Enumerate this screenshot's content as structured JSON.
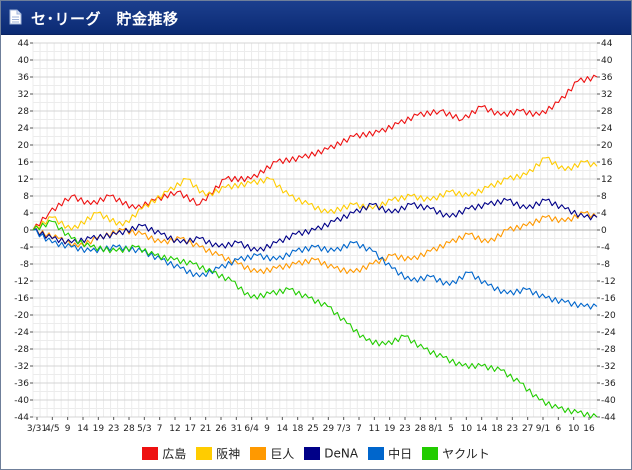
{
  "window": {
    "title": "セ･リーグ　貯金推移",
    "icon": "document-icon"
  },
  "chart_data": {
    "type": "line",
    "title": "セ･リーグ　貯金推移",
    "ylim": [
      -44,
      44
    ],
    "y_ticks": [
      44,
      40,
      36,
      32,
      28,
      24,
      20,
      16,
      12,
      8,
      4,
      0,
      -4,
      -8,
      -12,
      -16,
      -20,
      -24,
      -28,
      -32,
      -36,
      -40,
      -44
    ],
    "x_tick_labels": [
      "3/31",
      "4/5",
      "9",
      "14",
      "19",
      "23",
      "28",
      "5/3",
      "7",
      "12",
      "17",
      "21",
      "26",
      "31",
      "6/4",
      "9",
      "14",
      "18",
      "25",
      "29",
      "7/3",
      "7",
      "11",
      "19",
      "23",
      "28",
      "8/1",
      "5",
      "10",
      "14",
      "18",
      "23",
      "27",
      "9/1",
      "6",
      "10",
      "16"
    ],
    "grid": true,
    "legend_position": "bottom",
    "series": [
      {
        "name": "広島",
        "color": "#ee1111",
        "points": [
          [
            0,
            0
          ],
          [
            5,
            4
          ],
          [
            12,
            8
          ],
          [
            18,
            6
          ],
          [
            24,
            8
          ],
          [
            32,
            5
          ],
          [
            38,
            7
          ],
          [
            45,
            9
          ],
          [
            52,
            6
          ],
          [
            60,
            12
          ],
          [
            68,
            12
          ],
          [
            76,
            16
          ],
          [
            84,
            17
          ],
          [
            92,
            19
          ],
          [
            100,
            22
          ],
          [
            108,
            23
          ],
          [
            114,
            25
          ],
          [
            120,
            27
          ],
          [
            127,
            28
          ],
          [
            134,
            26
          ],
          [
            140,
            29
          ],
          [
            146,
            27
          ],
          [
            152,
            28
          ],
          [
            158,
            27
          ],
          [
            164,
            30
          ],
          [
            170,
            35
          ],
          [
            176,
            36
          ]
        ]
      },
      {
        "name": "阪神",
        "color": "#ffcc00",
        "points": [
          [
            0,
            0
          ],
          [
            6,
            3
          ],
          [
            12,
            0
          ],
          [
            20,
            4
          ],
          [
            28,
            1
          ],
          [
            34,
            5
          ],
          [
            42,
            9
          ],
          [
            48,
            12
          ],
          [
            54,
            8
          ],
          [
            60,
            10
          ],
          [
            68,
            11
          ],
          [
            74,
            12
          ],
          [
            80,
            8
          ],
          [
            86,
            6
          ],
          [
            92,
            4
          ],
          [
            100,
            6
          ],
          [
            106,
            5
          ],
          [
            112,
            7
          ],
          [
            118,
            8
          ],
          [
            124,
            7
          ],
          [
            130,
            9
          ],
          [
            136,
            8
          ],
          [
            142,
            10
          ],
          [
            148,
            12
          ],
          [
            154,
            13
          ],
          [
            160,
            17
          ],
          [
            166,
            14
          ],
          [
            172,
            16
          ],
          [
            176,
            15
          ]
        ]
      },
      {
        "name": "巨人",
        "color": "#ff9900",
        "points": [
          [
            0,
            0
          ],
          [
            8,
            -2
          ],
          [
            14,
            -4
          ],
          [
            20,
            -2
          ],
          [
            28,
            0
          ],
          [
            34,
            -1
          ],
          [
            40,
            -3
          ],
          [
            46,
            -2
          ],
          [
            52,
            -4
          ],
          [
            58,
            -6
          ],
          [
            64,
            -8
          ],
          [
            70,
            -10
          ],
          [
            76,
            -9
          ],
          [
            82,
            -8
          ],
          [
            88,
            -7
          ],
          [
            94,
            -9
          ],
          [
            100,
            -10
          ],
          [
            106,
            -8
          ],
          [
            112,
            -6
          ],
          [
            118,
            -7
          ],
          [
            124,
            -5
          ],
          [
            130,
            -3
          ],
          [
            136,
            -1
          ],
          [
            142,
            -3
          ],
          [
            148,
            0
          ],
          [
            154,
            1
          ],
          [
            160,
            3
          ],
          [
            166,
            2
          ],
          [
            172,
            4
          ],
          [
            176,
            3
          ]
        ]
      },
      {
        "name": "DeNA",
        "color": "#000088",
        "points": [
          [
            0,
            0
          ],
          [
            6,
            -2
          ],
          [
            12,
            -3
          ],
          [
            18,
            -2
          ],
          [
            26,
            -1
          ],
          [
            34,
            1
          ],
          [
            40,
            -1
          ],
          [
            46,
            -3
          ],
          [
            52,
            -2
          ],
          [
            58,
            -4
          ],
          [
            64,
            -3
          ],
          [
            70,
            -5
          ],
          [
            76,
            -3
          ],
          [
            82,
            -1
          ],
          [
            88,
            0
          ],
          [
            94,
            2
          ],
          [
            100,
            4
          ],
          [
            106,
            6
          ],
          [
            112,
            4
          ],
          [
            118,
            6
          ],
          [
            124,
            5
          ],
          [
            130,
            3
          ],
          [
            136,
            5
          ],
          [
            142,
            6
          ],
          [
            148,
            7
          ],
          [
            154,
            5
          ],
          [
            160,
            7
          ],
          [
            166,
            5
          ],
          [
            172,
            3
          ],
          [
            176,
            3
          ]
        ]
      },
      {
        "name": "中日",
        "color": "#0066cc",
        "points": [
          [
            0,
            0
          ],
          [
            6,
            -3
          ],
          [
            12,
            -4
          ],
          [
            18,
            -5
          ],
          [
            26,
            -4
          ],
          [
            34,
            -5
          ],
          [
            40,
            -7
          ],
          [
            46,
            -9
          ],
          [
            52,
            -11
          ],
          [
            58,
            -9
          ],
          [
            64,
            -7
          ],
          [
            70,
            -6
          ],
          [
            76,
            -7
          ],
          [
            82,
            -5
          ],
          [
            88,
            -4
          ],
          [
            94,
            -5
          ],
          [
            100,
            -3
          ],
          [
            106,
            -5
          ],
          [
            112,
            -9
          ],
          [
            118,
            -12
          ],
          [
            124,
            -11
          ],
          [
            130,
            -13
          ],
          [
            136,
            -10
          ],
          [
            142,
            -13
          ],
          [
            148,
            -15
          ],
          [
            154,
            -14
          ],
          [
            160,
            -16
          ],
          [
            166,
            -17
          ],
          [
            172,
            -18
          ],
          [
            176,
            -18
          ]
        ]
      },
      {
        "name": "ヤクルト",
        "color": "#22cc00",
        "points": [
          [
            0,
            0
          ],
          [
            6,
            2
          ],
          [
            12,
            -2
          ],
          [
            18,
            -4
          ],
          [
            26,
            -5
          ],
          [
            32,
            -4
          ],
          [
            38,
            -6
          ],
          [
            44,
            -7
          ],
          [
            50,
            -8
          ],
          [
            56,
            -10
          ],
          [
            62,
            -12
          ],
          [
            68,
            -16
          ],
          [
            74,
            -15
          ],
          [
            80,
            -14
          ],
          [
            86,
            -16
          ],
          [
            92,
            -18
          ],
          [
            98,
            -22
          ],
          [
            104,
            -26
          ],
          [
            110,
            -27
          ],
          [
            116,
            -25
          ],
          [
            122,
            -28
          ],
          [
            128,
            -30
          ],
          [
            134,
            -32
          ],
          [
            140,
            -32
          ],
          [
            146,
            -33
          ],
          [
            152,
            -36
          ],
          [
            158,
            -40
          ],
          [
            164,
            -42
          ],
          [
            170,
            -43
          ],
          [
            176,
            -44
          ]
        ]
      }
    ]
  }
}
